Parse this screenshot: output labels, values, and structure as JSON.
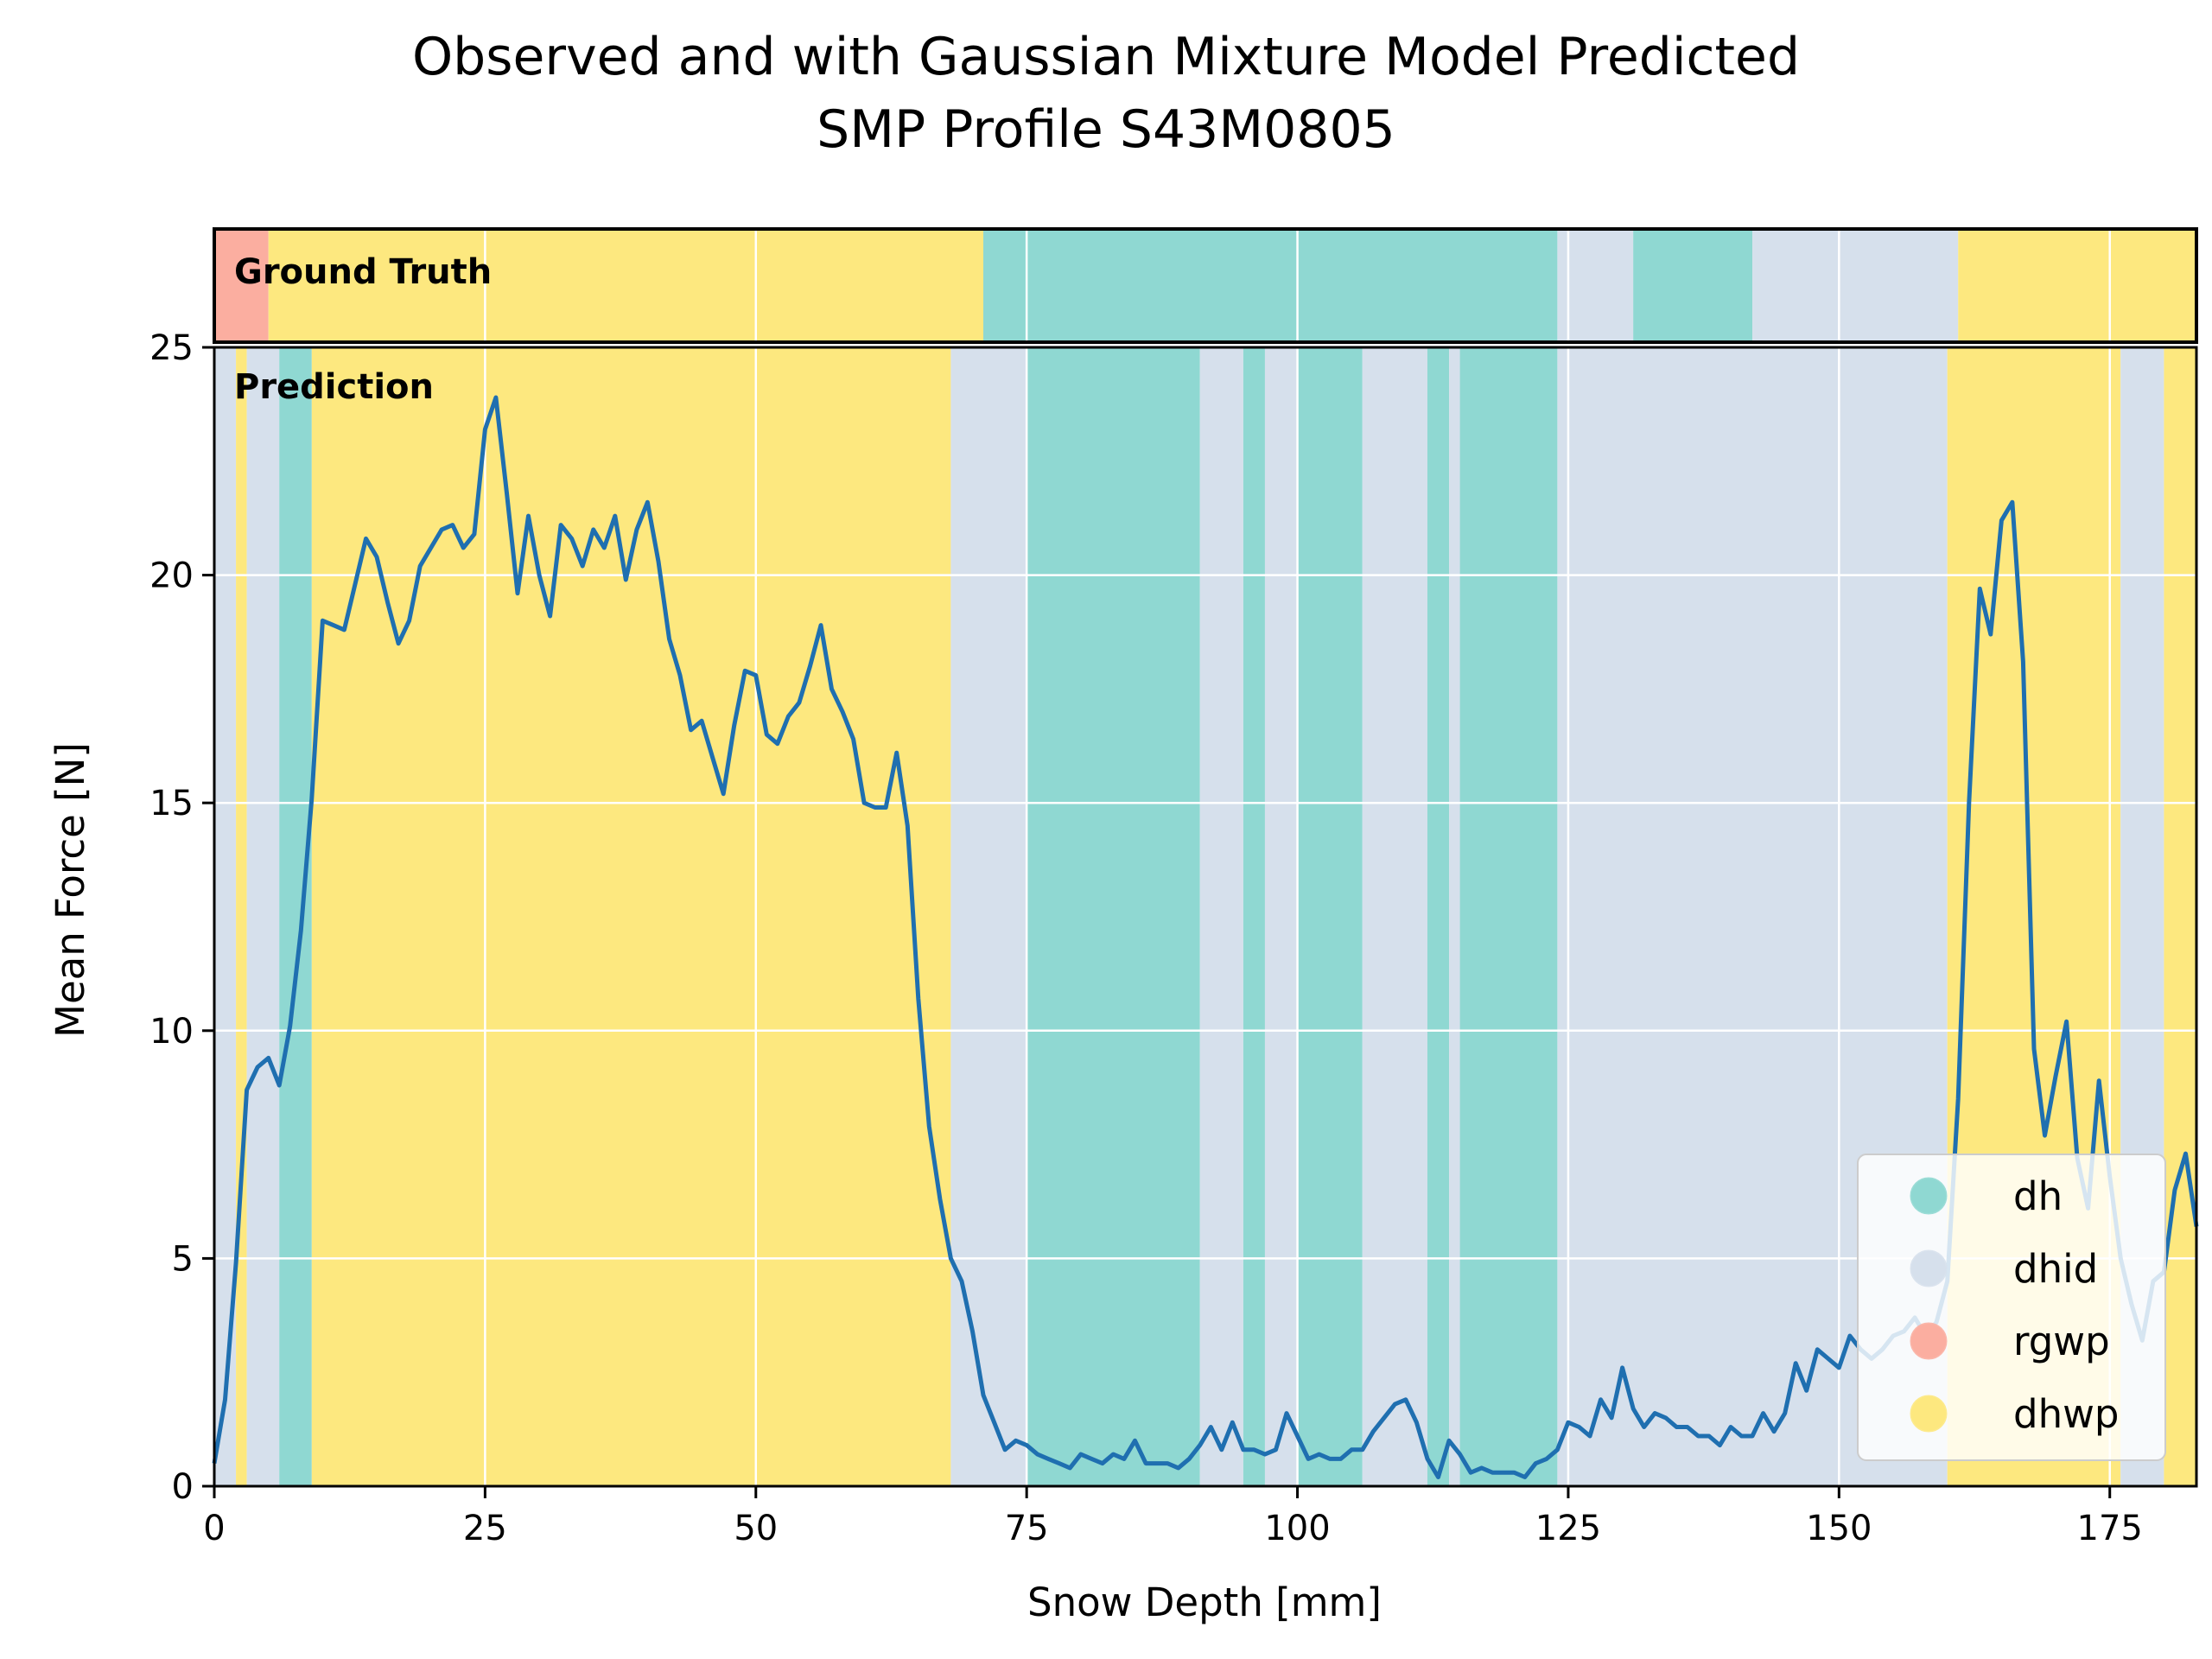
{
  "chart_data": {
    "type": "line",
    "title_lines": [
      "Observed and with Gaussian Mixture Model Predicted",
      "SMP Profile S43M0805"
    ],
    "xlabel": "Snow Depth [mm]",
    "ylabel": "Mean Force [N]",
    "xlim": [
      0,
      183
    ],
    "ylim": [
      0,
      25
    ],
    "xticks": [
      0,
      25,
      50,
      75,
      100,
      125,
      150,
      175
    ],
    "yticks": [
      0,
      5,
      10,
      15,
      20,
      25
    ],
    "grid": true,
    "legend_position": "lower right",
    "ground_truth_label": "Ground Truth",
    "prediction_label": "Prediction",
    "classes": [
      {
        "name": "dh",
        "color": "#8fd8d2"
      },
      {
        "name": "dhid",
        "color": "#d6e0ec"
      },
      {
        "name": "rgwp",
        "color": "#fbaea0"
      },
      {
        "name": "dhwp",
        "color": "#fde87f"
      }
    ],
    "ground_truth": [
      {
        "start": 0,
        "end": 5,
        "class": "rgwp"
      },
      {
        "start": 5,
        "end": 71,
        "class": "dhwp"
      },
      {
        "start": 71,
        "end": 124,
        "class": "dh"
      },
      {
        "start": 124,
        "end": 131,
        "class": "dhid"
      },
      {
        "start": 131,
        "end": 142,
        "class": "dh"
      },
      {
        "start": 142,
        "end": 161,
        "class": "dhid"
      },
      {
        "start": 161,
        "end": 183,
        "class": "dhwp"
      }
    ],
    "prediction": [
      {
        "start": 0,
        "end": 2,
        "class": "dhid"
      },
      {
        "start": 2,
        "end": 3,
        "class": "dhwp"
      },
      {
        "start": 3,
        "end": 6,
        "class": "dhid"
      },
      {
        "start": 6,
        "end": 9,
        "class": "dh"
      },
      {
        "start": 9,
        "end": 68,
        "class": "dhwp"
      },
      {
        "start": 68,
        "end": 75,
        "class": "dhid"
      },
      {
        "start": 75,
        "end": 91,
        "class": "dh"
      },
      {
        "start": 91,
        "end": 95,
        "class": "dhid"
      },
      {
        "start": 95,
        "end": 97,
        "class": "dh"
      },
      {
        "start": 97,
        "end": 100,
        "class": "dhid"
      },
      {
        "start": 100,
        "end": 106,
        "class": "dh"
      },
      {
        "start": 106,
        "end": 112,
        "class": "dhid"
      },
      {
        "start": 112,
        "end": 114,
        "class": "dh"
      },
      {
        "start": 114,
        "end": 115,
        "class": "dhid"
      },
      {
        "start": 115,
        "end": 124,
        "class": "dh"
      },
      {
        "start": 124,
        "end": 160,
        "class": "dhid"
      },
      {
        "start": 160,
        "end": 176,
        "class": "dhwp"
      },
      {
        "start": 176,
        "end": 180,
        "class": "dhid"
      },
      {
        "start": 180,
        "end": 183,
        "class": "dhwp"
      }
    ],
    "series": [
      {
        "color": "#1f6fb0",
        "x": [
          0,
          1,
          2,
          3,
          4,
          5,
          6,
          7,
          8,
          9,
          10,
          11,
          12,
          13,
          14,
          15,
          16,
          17,
          18,
          19,
          20,
          21,
          22,
          23,
          24,
          25,
          26,
          27,
          28,
          29,
          30,
          31,
          32,
          33,
          34,
          35,
          36,
          37,
          38,
          39,
          40,
          41,
          42,
          43,
          44,
          45,
          46,
          47,
          48,
          49,
          50,
          51,
          52,
          53,
          54,
          55,
          56,
          57,
          58,
          59,
          60,
          61,
          62,
          63,
          64,
          65,
          66,
          67,
          68,
          69,
          70,
          71,
          72,
          73,
          74,
          75,
          76,
          77,
          78,
          79,
          80,
          81,
          82,
          83,
          84,
          85,
          86,
          87,
          88,
          89,
          90,
          91,
          92,
          93,
          94,
          95,
          96,
          97,
          98,
          99,
          100,
          101,
          102,
          103,
          104,
          105,
          106,
          107,
          108,
          109,
          110,
          111,
          112,
          113,
          114,
          115,
          116,
          117,
          118,
          119,
          120,
          121,
          122,
          123,
          124,
          125,
          126,
          127,
          128,
          129,
          130,
          131,
          132,
          133,
          134,
          135,
          136,
          137,
          138,
          139,
          140,
          141,
          142,
          143,
          144,
          145,
          146,
          147,
          148,
          149,
          150,
          151,
          152,
          153,
          154,
          155,
          156,
          157,
          158,
          159,
          160,
          161,
          162,
          163,
          164,
          165,
          166,
          167,
          168,
          169,
          170,
          171,
          172,
          173,
          174,
          175,
          176,
          177,
          178,
          179,
          180,
          181,
          182,
          183
        ],
        "y": [
          0.5,
          1.9,
          4.9,
          8.7,
          9.2,
          9.4,
          8.8,
          10.1,
          12.2,
          15.1,
          19.0,
          18.9,
          18.8,
          19.8,
          20.8,
          20.4,
          19.4,
          18.5,
          19.0,
          20.2,
          20.6,
          21.0,
          21.1,
          20.6,
          20.9,
          23.2,
          23.9,
          21.8,
          19.6,
          21.3,
          20.0,
          19.1,
          21.1,
          20.8,
          20.2,
          21.0,
          20.6,
          21.3,
          19.9,
          21.0,
          21.6,
          20.3,
          18.6,
          17.8,
          16.6,
          16.8,
          16.0,
          15.2,
          16.7,
          17.9,
          17.8,
          16.5,
          16.3,
          16.9,
          17.2,
          18.0,
          18.9,
          17.5,
          17.0,
          16.4,
          15.0,
          14.9,
          14.9,
          16.1,
          14.5,
          10.7,
          7.9,
          6.3,
          5.0,
          4.5,
          3.4,
          2.0,
          1.4,
          0.8,
          1.0,
          0.9,
          0.7,
          0.6,
          0.5,
          0.4,
          0.7,
          0.6,
          0.5,
          0.7,
          0.6,
          1.0,
          0.5,
          0.5,
          0.5,
          0.4,
          0.6,
          0.9,
          1.3,
          0.8,
          1.4,
          0.8,
          0.8,
          0.7,
          0.8,
          1.6,
          1.1,
          0.6,
          0.7,
          0.6,
          0.6,
          0.8,
          0.8,
          1.2,
          1.5,
          1.8,
          1.9,
          1.4,
          0.6,
          0.2,
          1.0,
          0.7,
          0.3,
          0.4,
          0.3,
          0.3,
          0.3,
          0.2,
          0.5,
          0.6,
          0.8,
          1.4,
          1.3,
          1.1,
          1.9,
          1.5,
          2.6,
          1.7,
          1.3,
          1.6,
          1.5,
          1.3,
          1.3,
          1.1,
          1.1,
          0.9,
          1.3,
          1.1,
          1.1,
          1.6,
          1.2,
          1.6,
          2.7,
          2.1,
          3.0,
          2.8,
          2.6,
          3.3,
          3.0,
          2.8,
          3.0,
          3.3,
          3.4,
          3.7,
          3.3,
          3.6,
          4.5,
          8.5,
          15.0,
          19.7,
          18.7,
          21.2,
          21.6,
          18.1,
          9.6,
          7.7,
          9.0,
          10.2,
          7.2,
          6.1,
          8.9,
          6.8,
          5.0,
          4.0,
          3.2,
          4.5,
          4.7,
          6.5,
          7.3,
          5.7
        ]
      }
    ]
  }
}
